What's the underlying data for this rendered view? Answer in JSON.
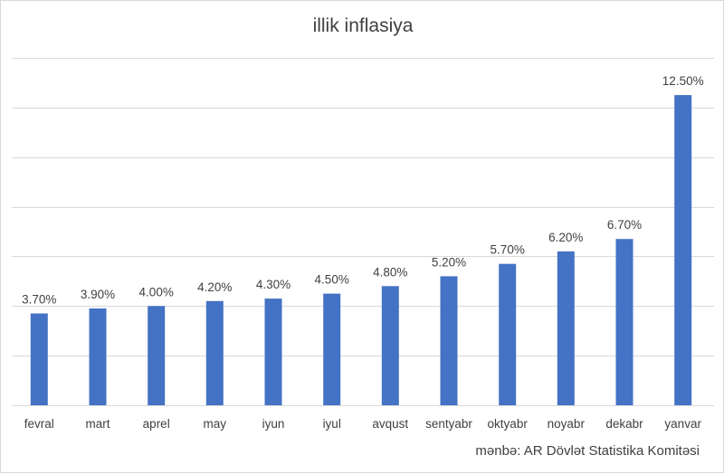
{
  "chart_data": {
    "type": "bar",
    "title": "illik inflasiya",
    "source": "mənbə: AR Dövlət Statistika Komitəsi",
    "categories": [
      "fevral",
      "mart",
      "aprel",
      "may",
      "iyun",
      "iyul",
      "avqust",
      "sentyabr",
      "oktyabr",
      "noyabr",
      "dekabr",
      "yanvar"
    ],
    "values": [
      3.7,
      3.9,
      4.0,
      4.2,
      4.3,
      4.5,
      4.8,
      5.2,
      5.7,
      6.2,
      6.7,
      12.5
    ],
    "value_labels": [
      "3.70%",
      "3.90%",
      "4.00%",
      "4.20%",
      "4.30%",
      "4.50%",
      "4.80%",
      "5.20%",
      "5.70%",
      "6.20%",
      "6.70%",
      "12.50%"
    ],
    "ylim": [
      0,
      14
    ],
    "y_grid_step": 2,
    "grid": true,
    "y_axis_labels_shown": false,
    "legend": "none",
    "bar_color": "#4472c4",
    "grid_color": "#d9d9d9"
  }
}
